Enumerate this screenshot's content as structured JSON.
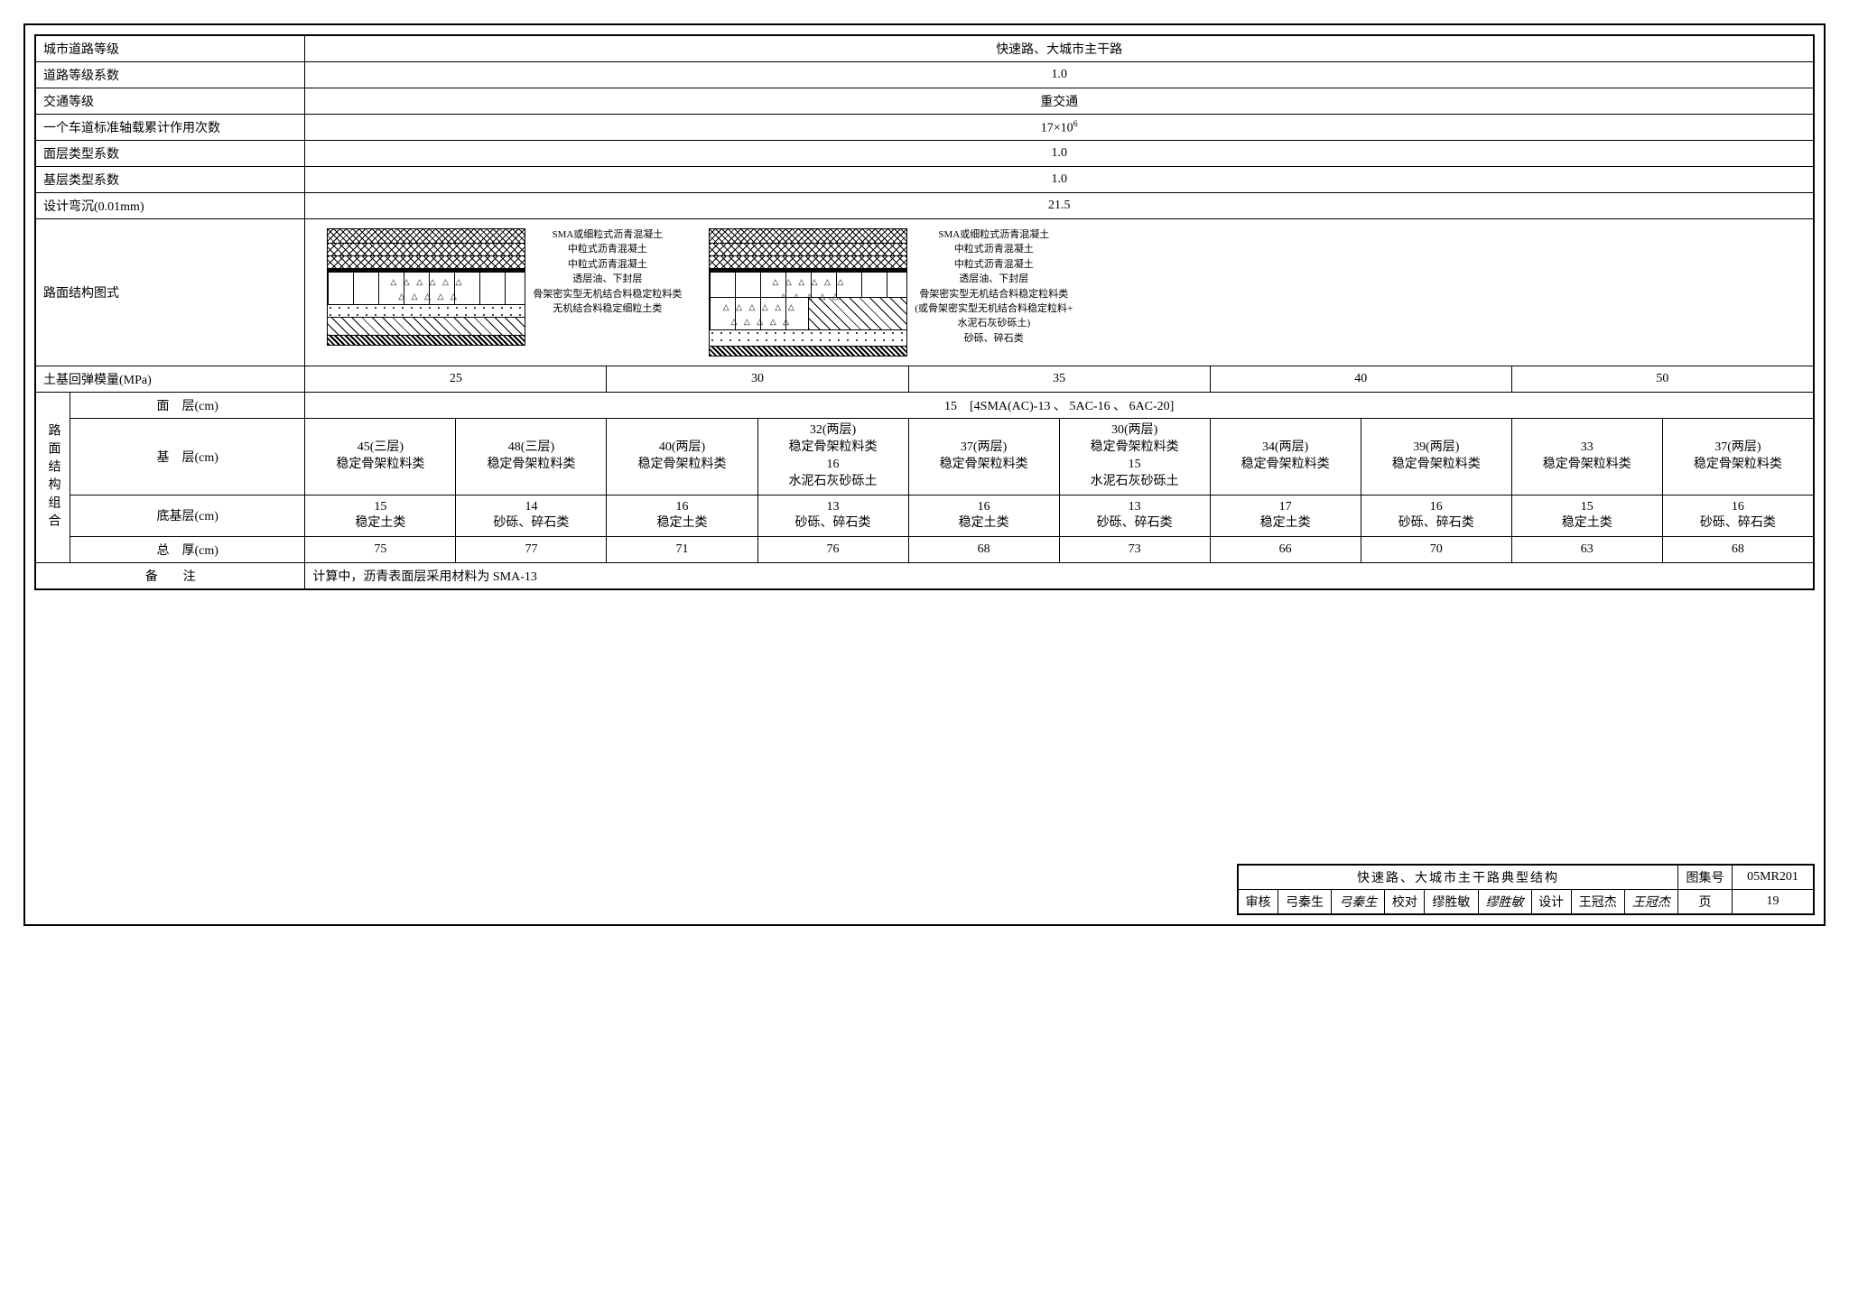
{
  "header_rows": [
    {
      "label": "城市道路等级",
      "value": "快速路、大城市主干路"
    },
    {
      "label": "道路等级系数",
      "value": "1.0"
    },
    {
      "label": "交通等级",
      "value": "重交通"
    },
    {
      "label": "一个车道标准轴载累计作用次数",
      "value_html": "17×10<sup>6</sup>"
    },
    {
      "label": "面层类型系数",
      "value": "1.0"
    },
    {
      "label": "基层类型系数",
      "value": "1.0"
    },
    {
      "label": "设计弯沉(0.01mm)",
      "value": "21.5"
    }
  ],
  "diagram_row_label": "路面结构图式",
  "diagram1_labels": [
    "SMA或细粒式沥青混凝土",
    "中粒式沥青混凝土",
    "中粒式沥青混凝土",
    "透层油、下封层",
    "骨架密实型无机结合料稳定粒料类",
    "无机结合料稳定细粒土类"
  ],
  "diagram2_labels": [
    "SMA或细粒式沥青混凝土",
    "中粒式沥青混凝土",
    "中粒式沥青混凝土",
    "透层油、下封层",
    "骨架密实型无机结合料稳定粒料类",
    "(或骨架密实型无机结合料稳定粒料+",
    "水泥石灰砂砾土)",
    "砂砾、碎石类"
  ],
  "modulus": {
    "label": "土基回弹模量(MPa)",
    "values": [
      "25",
      "30",
      "35",
      "40",
      "50"
    ]
  },
  "structure_group": {
    "vlabel": "路面结构组合",
    "surface": {
      "label": "面　层(cm)",
      "value": "15　[4SMA(AC)-13 、 5AC-16 、 6AC-20]"
    },
    "base": {
      "label": "基　层(cm)",
      "cells": [
        "45(三层)\n稳定骨架粒料类",
        "48(三层)\n稳定骨架粒料类",
        "40(两层)\n稳定骨架粒料类",
        "32(两层)\n稳定骨架粒料类\n16\n水泥石灰砂砾土",
        "37(两层)\n稳定骨架粒料类",
        "30(两层)\n稳定骨架粒料类\n15\n水泥石灰砂砾土",
        "34(两层)\n稳定骨架粒料类",
        "39(两层)\n稳定骨架粒料类",
        "33\n稳定骨架粒料类",
        "37(两层)\n稳定骨架粒料类"
      ]
    },
    "subbase": {
      "label": "底基层(cm)",
      "cells": [
        "15\n稳定土类",
        "14\n砂砾、碎石类",
        "16\n稳定土类",
        "13\n砂砾、碎石类",
        "16\n稳定土类",
        "13\n砂砾、碎石类",
        "17\n稳定土类",
        "16\n砂砾、碎石类",
        "15\n稳定土类",
        "16\n砂砾、碎石类"
      ]
    },
    "total": {
      "label": "总　厚(cm)",
      "cells": [
        "75",
        "77",
        "71",
        "76",
        "68",
        "73",
        "66",
        "70",
        "63",
        "68"
      ]
    }
  },
  "remark": {
    "label": "备　　注",
    "value": "计算中，沥青表面层采用材料为 SMA-13"
  },
  "titleblock": {
    "title": "快速路、大城市主干路典型结构",
    "atlas_label": "图集号",
    "atlas_no": "05MR201",
    "review_label": "审核",
    "review_name": "弓秦生",
    "review_sig": "弓秦生",
    "check_label": "校对",
    "check_name": "缪胜敏",
    "check_sig": "缪胜敏",
    "design_label": "设计",
    "design_name": "王冠杰",
    "design_sig": "王冠杰",
    "page_label": "页",
    "page_no": "19"
  }
}
